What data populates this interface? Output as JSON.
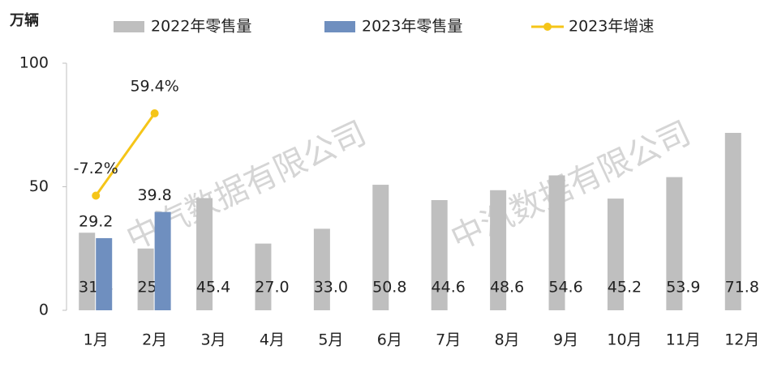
{
  "chart_data": {
    "type": "bar",
    "unit": "万辆",
    "watermark": "中汽数据有限公司",
    "categories": [
      "1月",
      "2月",
      "3月",
      "4月",
      "5月",
      "6月",
      "7月",
      "8月",
      "9月",
      "10月",
      "11月",
      "12月"
    ],
    "series": [
      {
        "name": "2022年零售量",
        "color": "#bfbfbf",
        "values": [
          31.4,
          25.0,
          45.4,
          27.0,
          33.0,
          50.8,
          44.6,
          48.6,
          54.6,
          45.2,
          53.9,
          71.8
        ],
        "value_labels": [
          "31.4",
          "25.0",
          "45.4",
          "27.0",
          "33.0",
          "50.8",
          "44.6",
          "48.6",
          "54.6",
          "45.2",
          "53.9",
          "71.8"
        ]
      },
      {
        "name": "2023年零售量",
        "color": "#6f8fbf",
        "values": [
          29.2,
          39.8,
          null,
          null,
          null,
          null,
          null,
          null,
          null,
          null,
          null,
          null
        ]
      },
      {
        "name": "2023年增速",
        "color": "#f5c518",
        "type": "line",
        "axis": "y2",
        "values": [
          -7.2,
          59.4,
          null,
          null,
          null,
          null,
          null,
          null,
          null,
          null,
          null,
          null
        ],
        "value_labels": [
          "-7.2%",
          "59.4%",
          null,
          null,
          null,
          null,
          null,
          null,
          null,
          null,
          null,
          null
        ]
      }
    ],
    "ylim": [
      0,
      100
    ],
    "yticks": [
      0,
      50,
      100
    ],
    "y2lim": [
      -100,
      100
    ]
  }
}
